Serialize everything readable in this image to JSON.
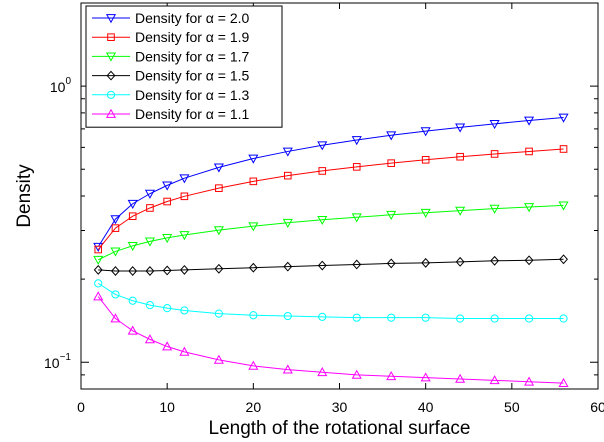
{
  "chart_data": {
    "type": "line",
    "xlabel": "Length of the rotational surface",
    "ylabel": "Density",
    "xlim": [
      0,
      60
    ],
    "ylim": [
      0.08,
      2.0
    ],
    "yscale": "log",
    "grid": false,
    "legend_position": "top-left",
    "x_ticks": [
      0,
      10,
      20,
      30,
      40,
      50,
      60
    ],
    "x_tick_labels": [
      "0",
      "10",
      "20",
      "30",
      "40",
      "50",
      "60"
    ],
    "y_ticks": [
      0.1,
      1
    ],
    "y_tick_labels": [
      {
        "base": "10",
        "exp": "−1"
      },
      {
        "base": "10",
        "exp": "0"
      }
    ],
    "x": [
      2,
      4,
      6,
      8,
      10,
      12,
      16,
      20,
      24,
      28,
      32,
      36,
      40,
      44,
      48,
      52,
      56
    ],
    "series": [
      {
        "name": "Density for α = 2.0",
        "color": "#0000ff",
        "marker": "triangle-down",
        "values": [
          0.262,
          0.33,
          0.375,
          0.408,
          0.437,
          0.464,
          0.508,
          0.547,
          0.58,
          0.611,
          0.638,
          0.664,
          0.687,
          0.709,
          0.73,
          0.751,
          0.77
        ]
      },
      {
        "name": "Density for α = 1.9",
        "color": "#ff0000",
        "marker": "square",
        "values": [
          0.256,
          0.306,
          0.338,
          0.362,
          0.382,
          0.399,
          0.427,
          0.452,
          0.474,
          0.493,
          0.51,
          0.526,
          0.541,
          0.555,
          0.568,
          0.58,
          0.592
        ]
      },
      {
        "name": "Density for α = 1.7",
        "color": "#00ff00",
        "marker": "triangle-down",
        "values": [
          0.235,
          0.252,
          0.264,
          0.274,
          0.282,
          0.289,
          0.301,
          0.311,
          0.32,
          0.328,
          0.335,
          0.342,
          0.348,
          0.354,
          0.36,
          0.365,
          0.37
        ]
      },
      {
        "name": "Density for α = 1.5",
        "color": "#000000",
        "marker": "diamond",
        "values": [
          0.216,
          0.214,
          0.214,
          0.214,
          0.215,
          0.216,
          0.218,
          0.22,
          0.222,
          0.224,
          0.226,
          0.228,
          0.229,
          0.231,
          0.233,
          0.234,
          0.236
        ]
      },
      {
        "name": "Density for α = 1.3",
        "color": "#00ffff",
        "marker": "circle",
        "values": [
          0.193,
          0.176,
          0.167,
          0.161,
          0.157,
          0.154,
          0.15,
          0.148,
          0.147,
          0.146,
          0.145,
          0.145,
          0.145,
          0.144,
          0.144,
          0.144,
          0.144
        ]
      },
      {
        "name": "Density for α = 1.1",
        "color": "#ff00ff",
        "marker": "triangle-up",
        "values": [
          0.173,
          0.144,
          0.13,
          0.121,
          0.114,
          0.109,
          0.102,
          0.097,
          0.094,
          0.092,
          0.09,
          0.089,
          0.088,
          0.087,
          0.086,
          0.085,
          0.084
        ]
      }
    ]
  }
}
